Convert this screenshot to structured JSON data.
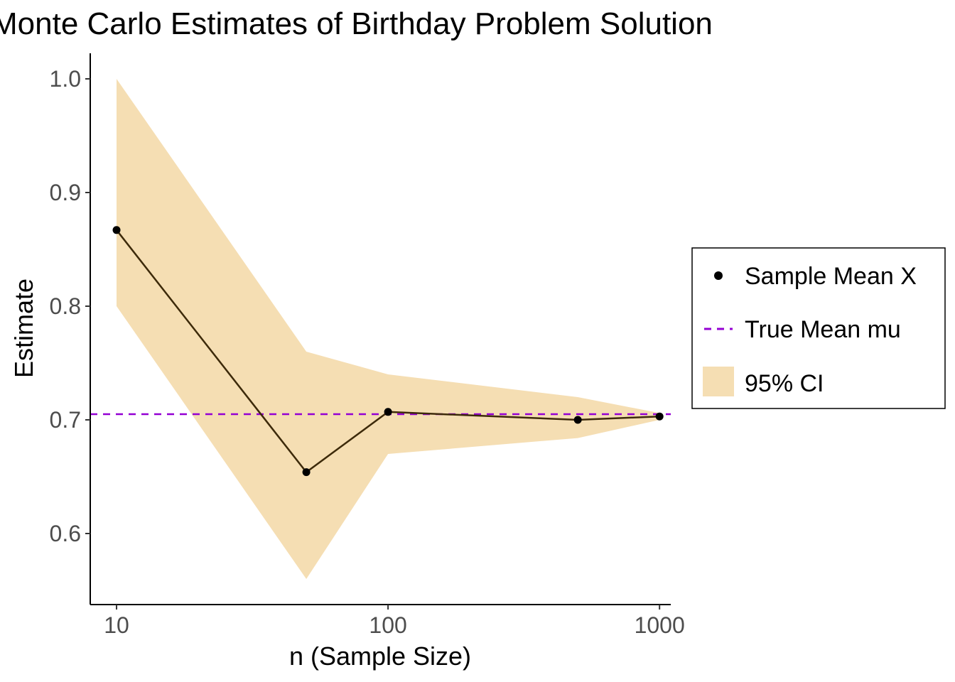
{
  "chart_data": {
    "type": "line",
    "title": "Monte Carlo Estimates of Birthday Problem Solution",
    "xlabel": "n (Sample Size)",
    "ylabel": "Estimate",
    "x_scale": "log10",
    "xlim": [
      8.0,
      1100
    ],
    "ylim": [
      0.5375,
      1.0225
    ],
    "x_ticks": [
      10,
      100,
      1000
    ],
    "x_tick_labels": [
      "10",
      "100",
      "1000"
    ],
    "y_ticks": [
      0.6,
      0.7,
      0.8,
      0.9,
      1.0
    ],
    "y_tick_labels": [
      "0.6",
      "0.7",
      "0.8",
      "0.9",
      "1.0"
    ],
    "x": [
      10,
      50,
      100,
      500,
      1000
    ],
    "series": [
      {
        "name": "Sample Mean X",
        "values": [
          0.867,
          0.654,
          0.707,
          0.7,
          0.703
        ]
      }
    ],
    "ci_lower": [
      0.8,
      0.56,
      0.67,
      0.684,
      0.7
    ],
    "ci_upper": [
      1.0,
      0.76,
      0.74,
      0.72,
      0.706
    ],
    "true_mean": 0.705,
    "grid": false,
    "legend_position": "right",
    "legend": [
      {
        "label": "Sample Mean X",
        "kind": "point"
      },
      {
        "label": "True Mean mu",
        "kind": "dashed-line"
      },
      {
        "label": "95% CI",
        "kind": "fill"
      }
    ],
    "colors": {
      "ci_fill": "#f5deb3",
      "line": "#3d2a0a",
      "points": "#000000",
      "true_mean": "#9400d3",
      "axis": "#000000",
      "tick_text": "#4d4d4d"
    }
  }
}
